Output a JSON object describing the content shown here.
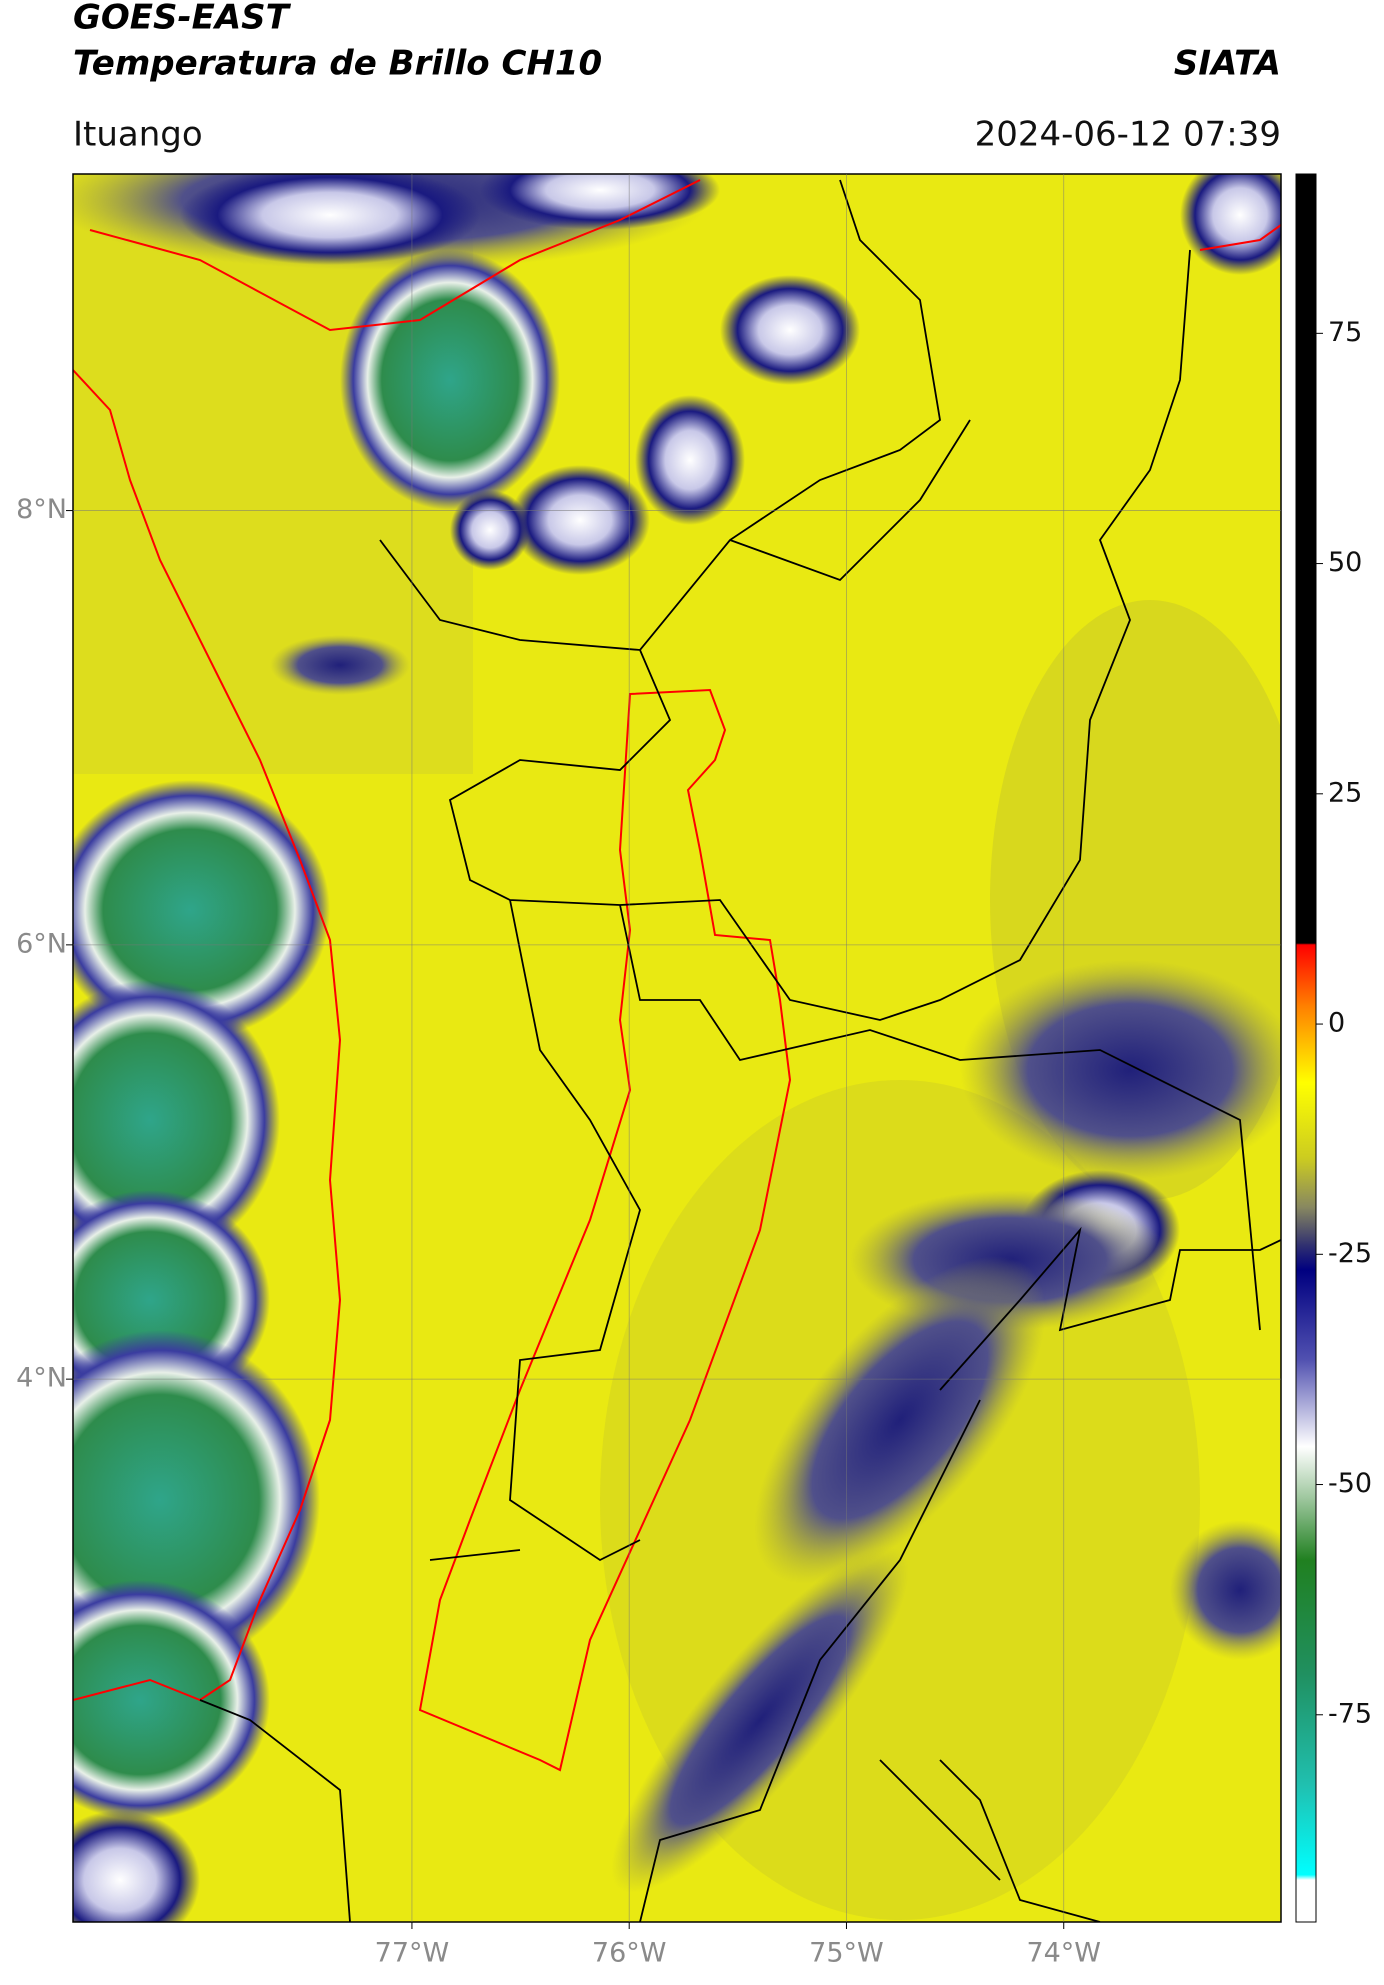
{
  "header": {
    "satellite": "GOES-EAST",
    "product": "Temperatura de Brillo CH10",
    "organization": "SIATA",
    "location": "Ituango",
    "datetime": "2024-06-12 07:39"
  },
  "map": {
    "xlim": [
      -78.56,
      -73.0
    ],
    "ylim": [
      1.5,
      9.55
    ],
    "xticks": [
      {
        "value": -77,
        "label": "77°W"
      },
      {
        "value": -76,
        "label": "76°W"
      },
      {
        "value": -75,
        "label": "75°W"
      },
      {
        "value": -74,
        "label": "74°W"
      }
    ],
    "yticks": [
      {
        "value": 8,
        "label": "8°N"
      },
      {
        "value": 6,
        "label": "6°N"
      },
      {
        "value": 4,
        "label": "4°N"
      }
    ]
  },
  "colorbar": {
    "lim": [
      -97.5,
      92.3
    ],
    "ticks": [
      75,
      50,
      25,
      0,
      -25,
      -50,
      -75
    ]
  }
}
